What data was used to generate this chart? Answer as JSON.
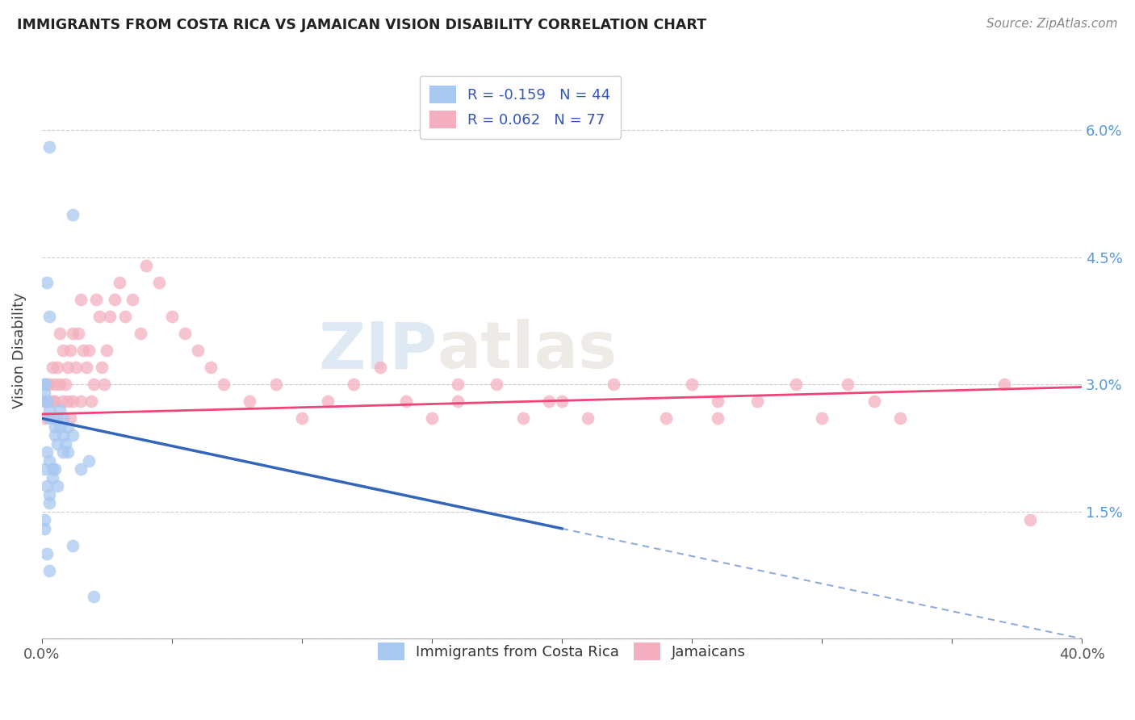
{
  "title": "IMMIGRANTS FROM COSTA RICA VS JAMAICAN VISION DISABILITY CORRELATION CHART",
  "source": "Source: ZipAtlas.com",
  "ylabel": "Vision Disability",
  "yticks": [
    0.0,
    0.015,
    0.03,
    0.045,
    0.06
  ],
  "ytick_labels": [
    "",
    "1.5%",
    "3.0%",
    "4.5%",
    "6.0%"
  ],
  "xlim": [
    0.0,
    0.4
  ],
  "ylim": [
    0.0,
    0.068
  ],
  "legend_r_blue": "-0.159",
  "legend_n_blue": "44",
  "legend_r_pink": "0.062",
  "legend_n_pink": "77",
  "blue_color": "#a8c8f0",
  "pink_color": "#f4b0c0",
  "blue_line_color": "#3366bb",
  "pink_line_color": "#ee4477",
  "watermark_zip": "ZIP",
  "watermark_atlas": "atlas",
  "blue_line_intercept": 0.026,
  "blue_line_slope": -0.065,
  "blue_line_solid_end": 0.2,
  "blue_line_dash_end": 0.4,
  "pink_line_intercept": 0.0265,
  "pink_line_slope": 0.008,
  "blue_scatter_x": [
    0.003,
    0.012,
    0.002,
    0.003,
    0.001,
    0.001,
    0.001,
    0.002,
    0.002,
    0.003,
    0.003,
    0.004,
    0.004,
    0.005,
    0.005,
    0.006,
    0.007,
    0.007,
    0.008,
    0.008,
    0.009,
    0.01,
    0.001,
    0.002,
    0.003,
    0.004,
    0.006,
    0.008,
    0.01,
    0.012,
    0.002,
    0.003,
    0.003,
    0.004,
    0.005,
    0.006,
    0.001,
    0.001,
    0.015,
    0.018,
    0.002,
    0.003,
    0.012,
    0.02
  ],
  "blue_scatter_y": [
    0.058,
    0.05,
    0.042,
    0.038,
    0.03,
    0.03,
    0.029,
    0.028,
    0.028,
    0.027,
    0.026,
    0.026,
    0.026,
    0.025,
    0.024,
    0.026,
    0.027,
    0.025,
    0.026,
    0.024,
    0.023,
    0.025,
    0.02,
    0.022,
    0.021,
    0.02,
    0.023,
    0.022,
    0.022,
    0.024,
    0.018,
    0.017,
    0.016,
    0.019,
    0.02,
    0.018,
    0.014,
    0.013,
    0.02,
    0.021,
    0.01,
    0.008,
    0.011,
    0.005
  ],
  "pink_scatter_x": [
    0.001,
    0.001,
    0.002,
    0.002,
    0.003,
    0.003,
    0.004,
    0.004,
    0.005,
    0.005,
    0.006,
    0.007,
    0.007,
    0.008,
    0.008,
    0.009,
    0.01,
    0.01,
    0.011,
    0.011,
    0.012,
    0.012,
    0.013,
    0.014,
    0.015,
    0.015,
    0.016,
    0.017,
    0.018,
    0.019,
    0.02,
    0.021,
    0.022,
    0.023,
    0.024,
    0.025,
    0.026,
    0.028,
    0.03,
    0.032,
    0.035,
    0.038,
    0.04,
    0.045,
    0.05,
    0.055,
    0.06,
    0.065,
    0.07,
    0.08,
    0.09,
    0.1,
    0.11,
    0.12,
    0.13,
    0.14,
    0.15,
    0.16,
    0.175,
    0.185,
    0.195,
    0.21,
    0.22,
    0.24,
    0.25,
    0.26,
    0.275,
    0.29,
    0.3,
    0.32,
    0.16,
    0.2,
    0.26,
    0.31,
    0.33,
    0.37,
    0.38
  ],
  "pink_scatter_y": [
    0.028,
    0.026,
    0.028,
    0.03,
    0.028,
    0.03,
    0.032,
    0.028,
    0.03,
    0.028,
    0.032,
    0.03,
    0.036,
    0.028,
    0.034,
    0.03,
    0.028,
    0.032,
    0.026,
    0.034,
    0.028,
    0.036,
    0.032,
    0.036,
    0.04,
    0.028,
    0.034,
    0.032,
    0.034,
    0.028,
    0.03,
    0.04,
    0.038,
    0.032,
    0.03,
    0.034,
    0.038,
    0.04,
    0.042,
    0.038,
    0.04,
    0.036,
    0.044,
    0.042,
    0.038,
    0.036,
    0.034,
    0.032,
    0.03,
    0.028,
    0.03,
    0.026,
    0.028,
    0.03,
    0.032,
    0.028,
    0.026,
    0.028,
    0.03,
    0.026,
    0.028,
    0.026,
    0.03,
    0.026,
    0.03,
    0.028,
    0.028,
    0.03,
    0.026,
    0.028,
    0.03,
    0.028,
    0.026,
    0.03,
    0.026,
    0.03,
    0.014
  ]
}
